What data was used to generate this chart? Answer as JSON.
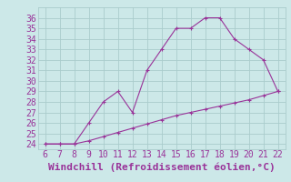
{
  "x": [
    6,
    7,
    8,
    9,
    10,
    11,
    12,
    13,
    14,
    15,
    16,
    17,
    18,
    19,
    20,
    21,
    22
  ],
  "y_curve": [
    24,
    24,
    24,
    26,
    28,
    29,
    27,
    31,
    33,
    35,
    35,
    36,
    36,
    34,
    33,
    32,
    29
  ],
  "y_line": [
    24,
    24,
    24,
    24.3,
    24.7,
    25.1,
    25.5,
    25.9,
    26.3,
    26.7,
    27.0,
    27.3,
    27.6,
    27.9,
    28.2,
    28.6,
    29
  ],
  "xlim": [
    5.5,
    22.5
  ],
  "ylim": [
    23.5,
    37.0
  ],
  "xticks": [
    6,
    7,
    8,
    9,
    10,
    11,
    12,
    13,
    14,
    15,
    16,
    17,
    18,
    19,
    20,
    21,
    22
  ],
  "yticks": [
    24,
    25,
    26,
    27,
    28,
    29,
    30,
    31,
    32,
    33,
    34,
    35,
    36
  ],
  "xlabel": "Windchill (Refroidissement éolien,°C)",
  "line_color": "#993399",
  "bg_color": "#cce8e8",
  "grid_color": "#aacccc",
  "xlabel_fontsize": 8,
  "tick_fontsize": 7
}
